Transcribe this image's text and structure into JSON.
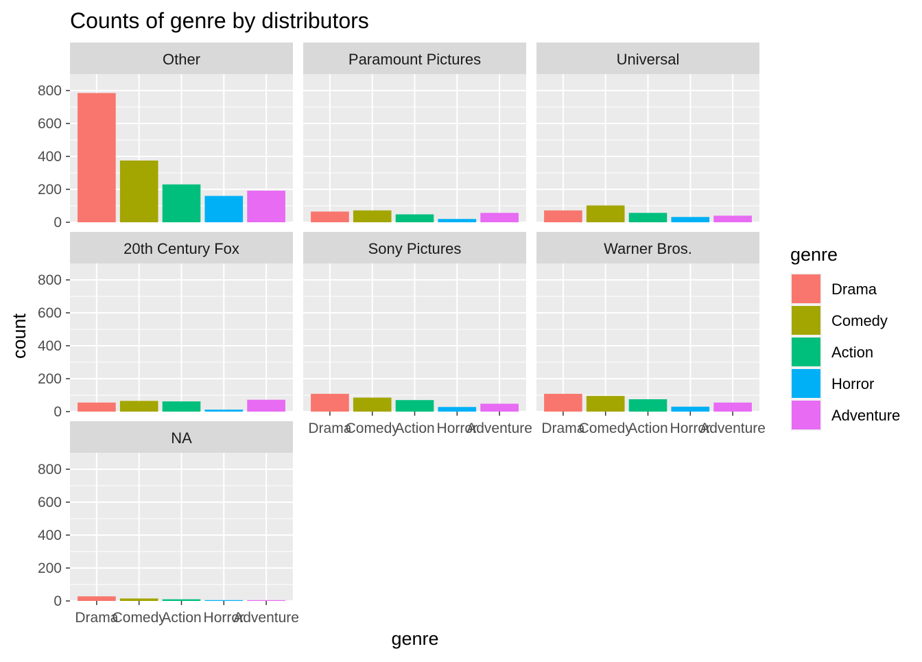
{
  "chart_data": {
    "type": "bar",
    "title": "Counts of genre by distributors",
    "xlabel": "genre",
    "ylabel": "count",
    "ylim": [
      0,
      900
    ],
    "yticks": [
      0,
      200,
      400,
      600,
      800
    ],
    "categories": [
      "Drama",
      "Comedy",
      "Action",
      "Horror",
      "Adventure"
    ],
    "colors": [
      "#F8766D",
      "#A3A500",
      "#00BF7D",
      "#00B0F6",
      "#E76BF3"
    ],
    "legend": {
      "title": "genre",
      "position": "right"
    },
    "grid": true,
    "facets": [
      {
        "name": "Other",
        "values": [
          785,
          375,
          230,
          160,
          192
        ]
      },
      {
        "name": "Paramount Pictures",
        "values": [
          65,
          72,
          48,
          20,
          57
        ]
      },
      {
        "name": "Universal",
        "values": [
          72,
          102,
          57,
          32,
          40
        ]
      },
      {
        "name": "20th Century Fox",
        "values": [
          55,
          65,
          62,
          12,
          72
        ]
      },
      {
        "name": "Sony Pictures",
        "values": [
          108,
          85,
          70,
          28,
          48
        ]
      },
      {
        "name": "Warner Bros.",
        "values": [
          108,
          95,
          75,
          30,
          55
        ]
      },
      {
        "name": "NA",
        "values": [
          28,
          15,
          10,
          5,
          5
        ]
      }
    ]
  }
}
